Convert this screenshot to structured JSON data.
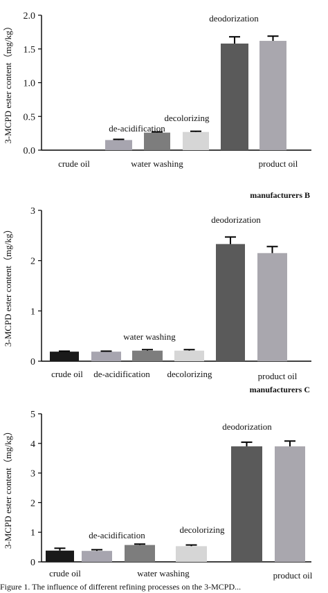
{
  "chart_data": [
    {
      "type": "bar",
      "title": "",
      "ylabel": "3-MCPD ester content（mg/kg）",
      "ylim": [
        0,
        2.0
      ],
      "yticks": [
        0.0,
        0.5,
        1.0,
        1.5,
        2.0
      ],
      "ytick_labels": [
        "0.0",
        "0.5",
        "1.0",
        "1.5",
        "2.0"
      ],
      "categories": [
        "crude oil",
        "de-acidification",
        "water washing",
        "decolorizing",
        "deodorization",
        "product oil"
      ],
      "values": [
        0.0,
        0.15,
        0.26,
        0.27,
        1.58,
        1.62
      ],
      "errors": [
        0.0,
        0.01,
        0.01,
        0.01,
        0.1,
        0.07
      ],
      "colors": [
        "#1a1a1a",
        "#a7a5af",
        "#7d7d7d",
        "#d6d6d6",
        "#5a5a5a",
        "#a9a7ae"
      ],
      "grid": false
    },
    {
      "type": "bar",
      "title": "manufacturers  B",
      "ylabel": "3-MCPD ester content（mg/kg）",
      "ylim": [
        0,
        3
      ],
      "yticks": [
        0,
        1,
        2,
        3
      ],
      "ytick_labels": [
        "0",
        "1",
        "2",
        "3"
      ],
      "categories": [
        "crude oil",
        "de-acidification",
        "water washing",
        "decolorizing",
        "deodorization",
        "product oil"
      ],
      "values": [
        0.19,
        0.19,
        0.21,
        0.21,
        2.33,
        2.15
      ],
      "errors": [
        0.01,
        0.01,
        0.02,
        0.02,
        0.14,
        0.13
      ],
      "colors": [
        "#1a1a1a",
        "#a7a5af",
        "#7d7d7d",
        "#d6d6d6",
        "#5a5a5a",
        "#a9a7ae"
      ],
      "grid": false
    },
    {
      "type": "bar",
      "title": "manufacturers  C",
      "ylabel": "3-MCPD ester content（mg/kg）",
      "ylim": [
        0,
        5
      ],
      "yticks": [
        0,
        1,
        2,
        3,
        4,
        5
      ],
      "ytick_labels": [
        "0",
        "1",
        "2",
        "3",
        "4",
        "5"
      ],
      "categories": [
        "crude oil",
        "de-acidification",
        "water washing",
        "decolorizing",
        "deodorization",
        "product oil"
      ],
      "values": [
        0.38,
        0.37,
        0.57,
        0.53,
        3.9,
        3.9
      ],
      "errors": [
        0.08,
        0.04,
        0.03,
        0.04,
        0.14,
        0.18
      ],
      "colors": [
        "#1a1a1a",
        "#a7a5af",
        "#7d7d7d",
        "#d6d6d6",
        "#5a5a5a",
        "#a9a7ae"
      ],
      "grid": false
    }
  ],
  "caption": "Figure 1. The influence of different refining processes on the 3-MCPD..."
}
